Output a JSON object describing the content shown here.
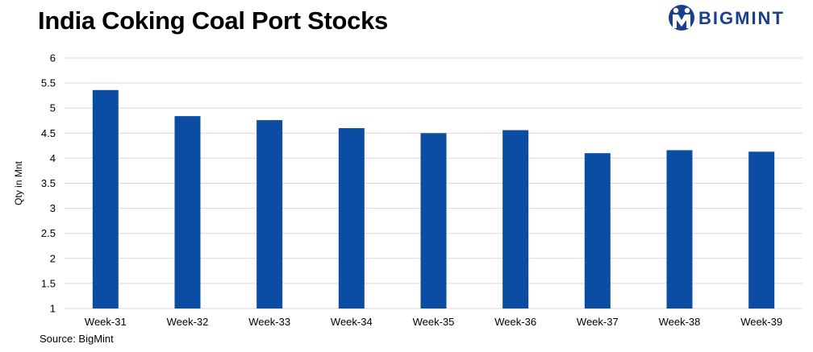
{
  "header": {
    "title": "India Coking Coal Port Stocks",
    "brand": "BIGMINT"
  },
  "footer": {
    "source": "Source: BigMint"
  },
  "colors": {
    "bar": "#0a4da2",
    "grid": "#d9d9d9",
    "brand": "#1a3f8f"
  },
  "chart_data": {
    "type": "bar",
    "title": "India Coking Coal Port Stocks",
    "xlabel": "",
    "ylabel": "Qty in Mnt",
    "categories": [
      "Week-31",
      "Week-32",
      "Week-33",
      "Week-34",
      "Week-35",
      "Week-36",
      "Week-37",
      "Week-38",
      "Week-39"
    ],
    "values": [
      5.36,
      4.84,
      4.76,
      4.6,
      4.5,
      4.56,
      4.1,
      4.16,
      4.13
    ],
    "ylim": [
      1,
      6
    ],
    "yticks": [
      "1",
      "1.5",
      "2",
      "2.5",
      "3",
      "3.5",
      "4",
      "4.5",
      "5",
      "5.5",
      "6"
    ],
    "grid": true,
    "legend": "none"
  }
}
